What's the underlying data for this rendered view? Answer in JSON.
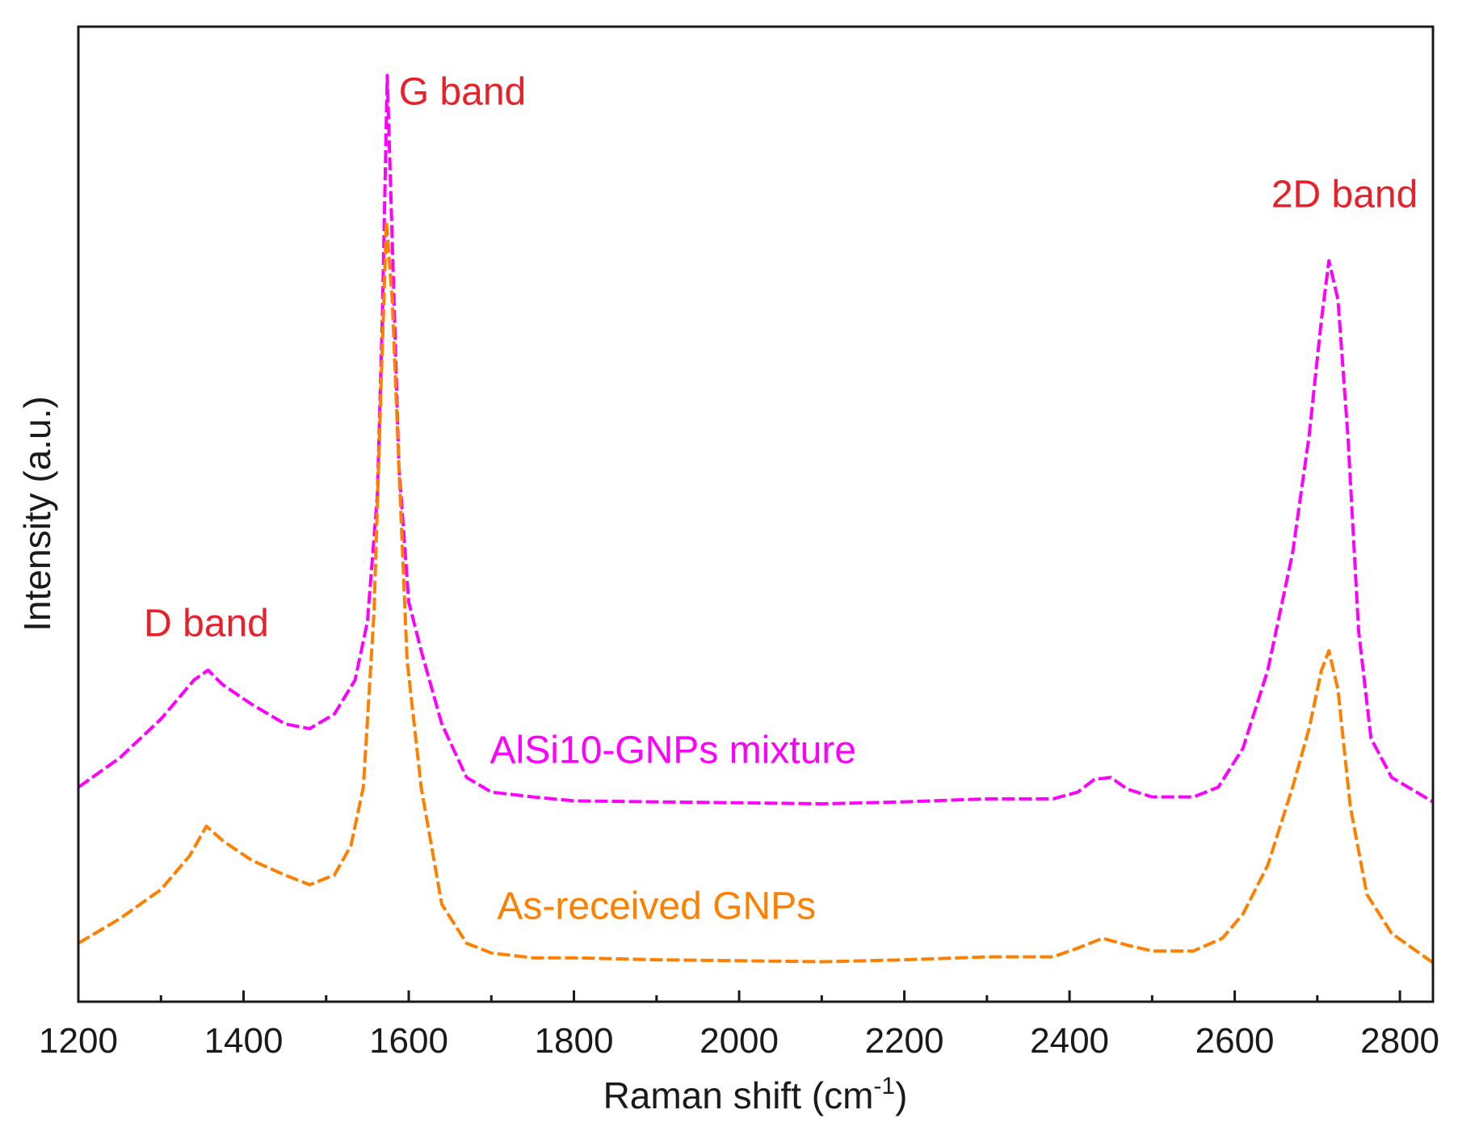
{
  "chart_data": {
    "type": "line",
    "title": "",
    "xlabel": "Raman shift (cm",
    "xlabel_sup": "-1",
    "xlabel_close": ")",
    "ylabel": "Intensity (a.u.)",
    "xlim": [
      1200,
      2840
    ],
    "ylim": [
      0,
      100
    ],
    "x_ticks": [
      1200,
      1400,
      1600,
      1800,
      2000,
      2200,
      2400,
      2600,
      2800
    ],
    "x_tick_labels": [
      "1200",
      "1400",
      "1600",
      "1800",
      "2000",
      "2200",
      "2400",
      "2600",
      "2800"
    ],
    "x_minor_step": 100,
    "y_ticks": [],
    "grid": false,
    "series": [
      {
        "name": "AlSi10-GNPs mixture",
        "color": "#ff00ff",
        "dash": "dashed",
        "points": [
          [
            1200,
            22
          ],
          [
            1250,
            25
          ],
          [
            1300,
            29
          ],
          [
            1340,
            33
          ],
          [
            1357,
            34
          ],
          [
            1375,
            32.5
          ],
          [
            1410,
            30.5
          ],
          [
            1450,
            28.5
          ],
          [
            1480,
            28
          ],
          [
            1510,
            29.5
          ],
          [
            1535,
            33
          ],
          [
            1550,
            39
          ],
          [
            1562,
            52
          ],
          [
            1568,
            70
          ],
          [
            1574,
            95
          ],
          [
            1580,
            78
          ],
          [
            1588,
            55
          ],
          [
            1600,
            41
          ],
          [
            1615,
            36
          ],
          [
            1640,
            28.5
          ],
          [
            1670,
            23
          ],
          [
            1700,
            21.5
          ],
          [
            1750,
            21
          ],
          [
            1800,
            20.6
          ],
          [
            1900,
            20.5
          ],
          [
            2000,
            20.4
          ],
          [
            2100,
            20.3
          ],
          [
            2200,
            20.5
          ],
          [
            2300,
            20.8
          ],
          [
            2380,
            20.8
          ],
          [
            2410,
            21.5
          ],
          [
            2430,
            22.8
          ],
          [
            2450,
            23
          ],
          [
            2470,
            21.8
          ],
          [
            2500,
            21
          ],
          [
            2550,
            21
          ],
          [
            2580,
            22
          ],
          [
            2610,
            26
          ],
          [
            2640,
            34
          ],
          [
            2670,
            46
          ],
          [
            2690,
            58
          ],
          [
            2705,
            70
          ],
          [
            2714,
            76
          ],
          [
            2725,
            72
          ],
          [
            2737,
            58
          ],
          [
            2750,
            38
          ],
          [
            2765,
            27
          ],
          [
            2790,
            23
          ],
          [
            2840,
            20.5
          ]
        ]
      },
      {
        "name": "As-received GNPs",
        "color": "#ff8000",
        "dash": "dashed",
        "points": [
          [
            1200,
            6
          ],
          [
            1250,
            8.5
          ],
          [
            1300,
            11.5
          ],
          [
            1335,
            15
          ],
          [
            1355,
            18
          ],
          [
            1375,
            16.5
          ],
          [
            1410,
            14.5
          ],
          [
            1450,
            13
          ],
          [
            1480,
            12
          ],
          [
            1510,
            13
          ],
          [
            1530,
            16
          ],
          [
            1545,
            22
          ],
          [
            1558,
            40
          ],
          [
            1566,
            62
          ],
          [
            1573,
            80
          ],
          [
            1580,
            72
          ],
          [
            1588,
            55
          ],
          [
            1598,
            35
          ],
          [
            1615,
            22
          ],
          [
            1640,
            10
          ],
          [
            1670,
            6
          ],
          [
            1700,
            5
          ],
          [
            1750,
            4.5
          ],
          [
            1800,
            4.5
          ],
          [
            1900,
            4.3
          ],
          [
            2000,
            4.2
          ],
          [
            2100,
            4.1
          ],
          [
            2200,
            4.3
          ],
          [
            2300,
            4.6
          ],
          [
            2380,
            4.6
          ],
          [
            2410,
            5.5
          ],
          [
            2440,
            6.5
          ],
          [
            2470,
            5.8
          ],
          [
            2500,
            5.2
          ],
          [
            2550,
            5.2
          ],
          [
            2585,
            6.5
          ],
          [
            2610,
            9
          ],
          [
            2640,
            14
          ],
          [
            2670,
            22
          ],
          [
            2690,
            28
          ],
          [
            2705,
            34
          ],
          [
            2714,
            36
          ],
          [
            2725,
            32
          ],
          [
            2740,
            20
          ],
          [
            2760,
            11
          ],
          [
            2790,
            7
          ],
          [
            2840,
            4
          ]
        ]
      }
    ],
    "annotations": [
      {
        "text": "D band",
        "x": 1355,
        "y": 37.5,
        "color": "#e8202a"
      },
      {
        "text": "G band",
        "x": 1665,
        "y": 92,
        "color": "#e8202a"
      },
      {
        "text": "2D band",
        "x": 2733,
        "y": 81.5,
        "color": "#e8202a"
      },
      {
        "text": "AlSi10-GNPs mixture",
        "x": 1920,
        "y": 24.5,
        "color": "#ff00ff"
      },
      {
        "text": "As-received GNPs",
        "x": 1900,
        "y": 8.5,
        "color": "#ff8000"
      }
    ]
  }
}
